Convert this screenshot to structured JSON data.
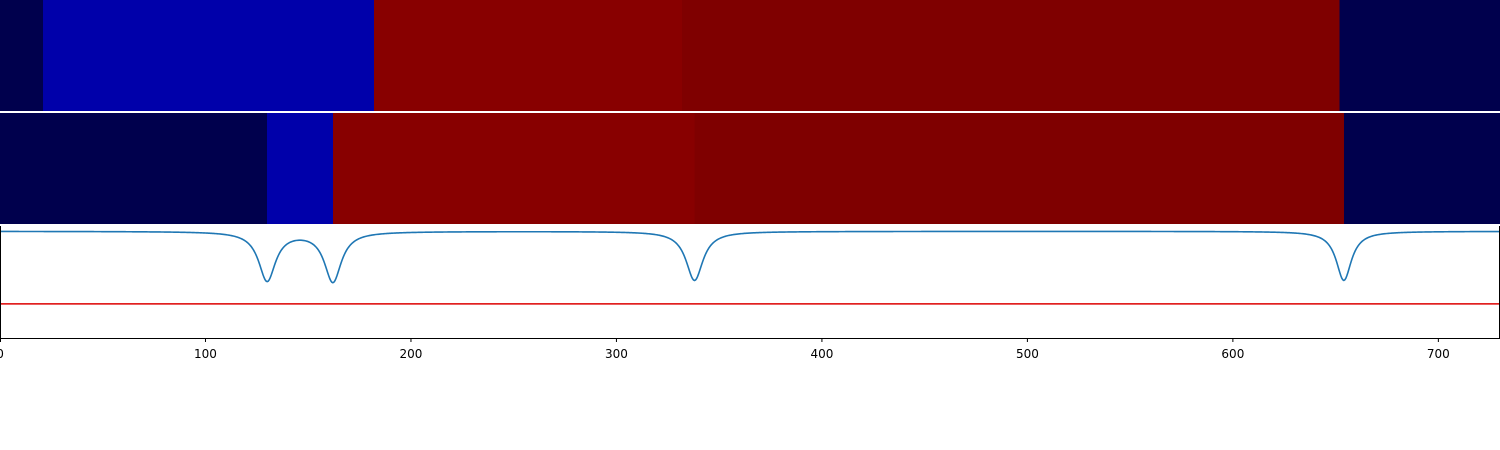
{
  "chart_data": {
    "type": "heatmap",
    "xlim": [
      0,
      730
    ],
    "xticks": [
      0,
      100,
      200,
      300,
      400,
      500,
      600,
      700
    ],
    "xtick_labels": [
      "0",
      "100",
      "200",
      "300",
      "400",
      "500",
      "600",
      "700"
    ],
    "grid": false,
    "rows": [
      {
        "segments": [
          {
            "start": 0,
            "end": 21,
            "color": "#00004d"
          },
          {
            "start": 21,
            "end": 182,
            "color": "#0000aa"
          },
          {
            "start": 182,
            "end": 332,
            "color": "#880000"
          },
          {
            "start": 332,
            "end": 652,
            "color": "#7f0000"
          },
          {
            "start": 652,
            "end": 730,
            "color": "#00004d"
          }
        ]
      },
      {
        "segments": [
          {
            "start": 0,
            "end": 130,
            "color": "#00004d"
          },
          {
            "start": 130,
            "end": 162,
            "color": "#0000aa"
          },
          {
            "start": 162,
            "end": 338,
            "color": "#880000"
          },
          {
            "start": 338,
            "end": 654,
            "color": "#7f0000"
          },
          {
            "start": 654,
            "end": 730,
            "color": "#00004d"
          }
        ]
      }
    ],
    "signal": {
      "color": "#1f77b4",
      "ylim": [
        -1.0,
        0.05
      ],
      "baseline": 0,
      "dips": [
        {
          "x": 130,
          "depth": 0.46,
          "width": 5
        },
        {
          "x": 162,
          "depth": 0.47,
          "width": 5
        },
        {
          "x": 338,
          "depth": 0.46,
          "width": 5
        },
        {
          "x": 654,
          "depth": 0.46,
          "width": 4.5
        }
      ],
      "threshold": {
        "value": -0.68,
        "color": "#dd0000"
      }
    }
  }
}
